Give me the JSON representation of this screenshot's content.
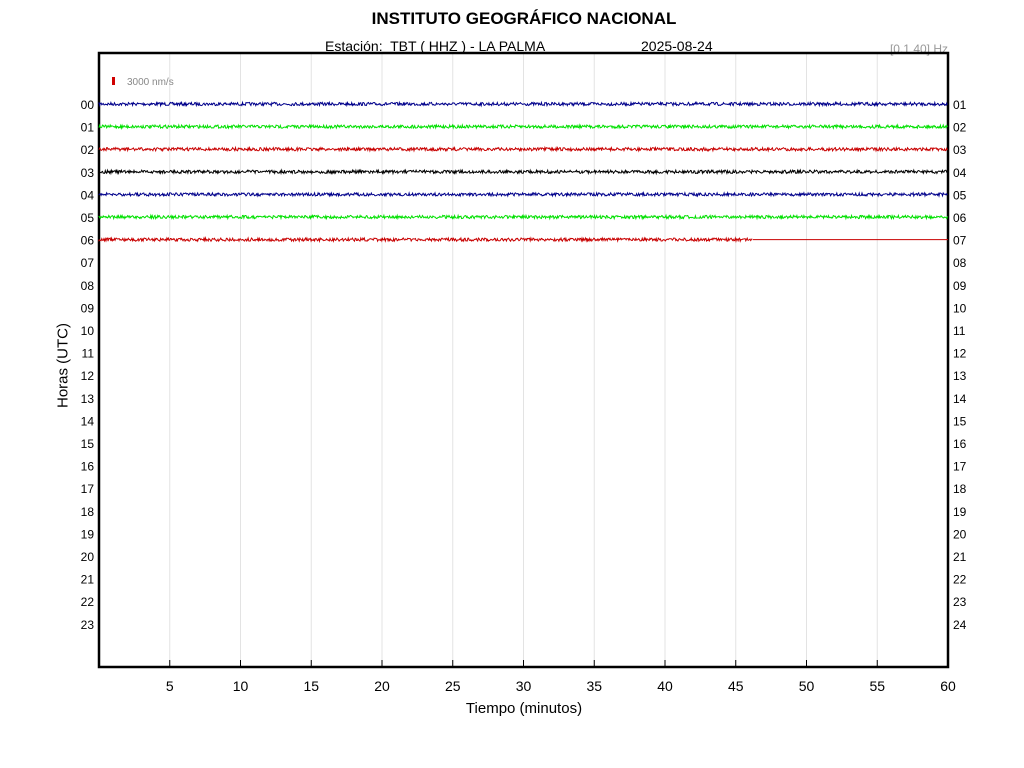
{
  "header": {
    "title": "INSTITUTO GEOGRÁFICO NACIONAL",
    "station": "Estación:  TBT ( HHZ ) - LA PALMA",
    "date": "2025-08-24",
    "band": "[0.1 40] Hz"
  },
  "chart_data": {
    "type": "line",
    "title": "INSTITUTO GEOGRÁFICO NACIONAL",
    "xlabel": "Tiempo (minutos)",
    "ylabel": "Horas (UTC)",
    "xlim": [
      0,
      60
    ],
    "x_ticks": [
      5,
      10,
      15,
      20,
      25,
      30,
      35,
      40,
      45,
      50,
      55,
      60
    ],
    "left_hour_labels": [
      "00",
      "01",
      "02",
      "03",
      "04",
      "05",
      "06",
      "07",
      "08",
      "09",
      "10",
      "11",
      "12",
      "13",
      "14",
      "15",
      "16",
      "17",
      "18",
      "19",
      "20",
      "21",
      "22",
      "23"
    ],
    "right_hour_labels": [
      "01",
      "02",
      "03",
      "04",
      "05",
      "06",
      "07",
      "08",
      "09",
      "10",
      "11",
      "12",
      "13",
      "14",
      "15",
      "16",
      "17",
      "18",
      "19",
      "20",
      "21",
      "22",
      "23",
      "24"
    ],
    "scale_label": "3000 nm/s",
    "scale_color": "#d00000",
    "grid": true,
    "series": [
      {
        "hour": "00",
        "color": "#00008b",
        "x_start": 0,
        "x_end": 60
      },
      {
        "hour": "01",
        "color": "#00e000",
        "x_start": 0,
        "x_end": 60
      },
      {
        "hour": "02",
        "color": "#c80000",
        "x_start": 0,
        "x_end": 60
      },
      {
        "hour": "03",
        "color": "#000000",
        "x_start": 0,
        "x_end": 60
      },
      {
        "hour": "04",
        "color": "#00008b",
        "x_start": 0,
        "x_end": 60
      },
      {
        "hour": "05",
        "color": "#00e000",
        "x_start": 0,
        "x_end": 60
      },
      {
        "hour": "06",
        "color": "#c80000",
        "x_start": 0,
        "x_end": 46.2
      }
    ]
  }
}
